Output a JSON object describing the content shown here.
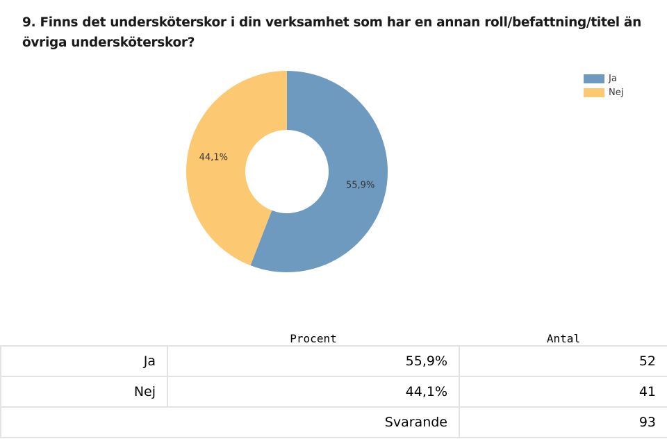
{
  "title": "9. Finns det undersköterskor i din verksamhet som har en annan roll/befattning/titel än övriga undersköterskor?",
  "chart_data": {
    "type": "pie",
    "variant": "donut",
    "categories": [
      "Ja",
      "Nej"
    ],
    "values": [
      55.9,
      44.1
    ],
    "data_labels": [
      "55,9%",
      "44,1%"
    ],
    "colors": [
      "#6f9ac0",
      "#fcc871"
    ],
    "legend_position": "top-right"
  },
  "legend": [
    {
      "label": "Ja",
      "color": "#6f9ac0"
    },
    {
      "label": "Nej",
      "color": "#fcc871"
    }
  ],
  "table": {
    "headers": [
      "",
      "Procent",
      "Antal"
    ],
    "rows": [
      {
        "label": "Ja",
        "procent": "55,9%",
        "antal": "52"
      },
      {
        "label": "Nej",
        "procent": "44,1%",
        "antal": "41"
      }
    ],
    "total": {
      "label": "Svarande",
      "antal": "93"
    }
  }
}
